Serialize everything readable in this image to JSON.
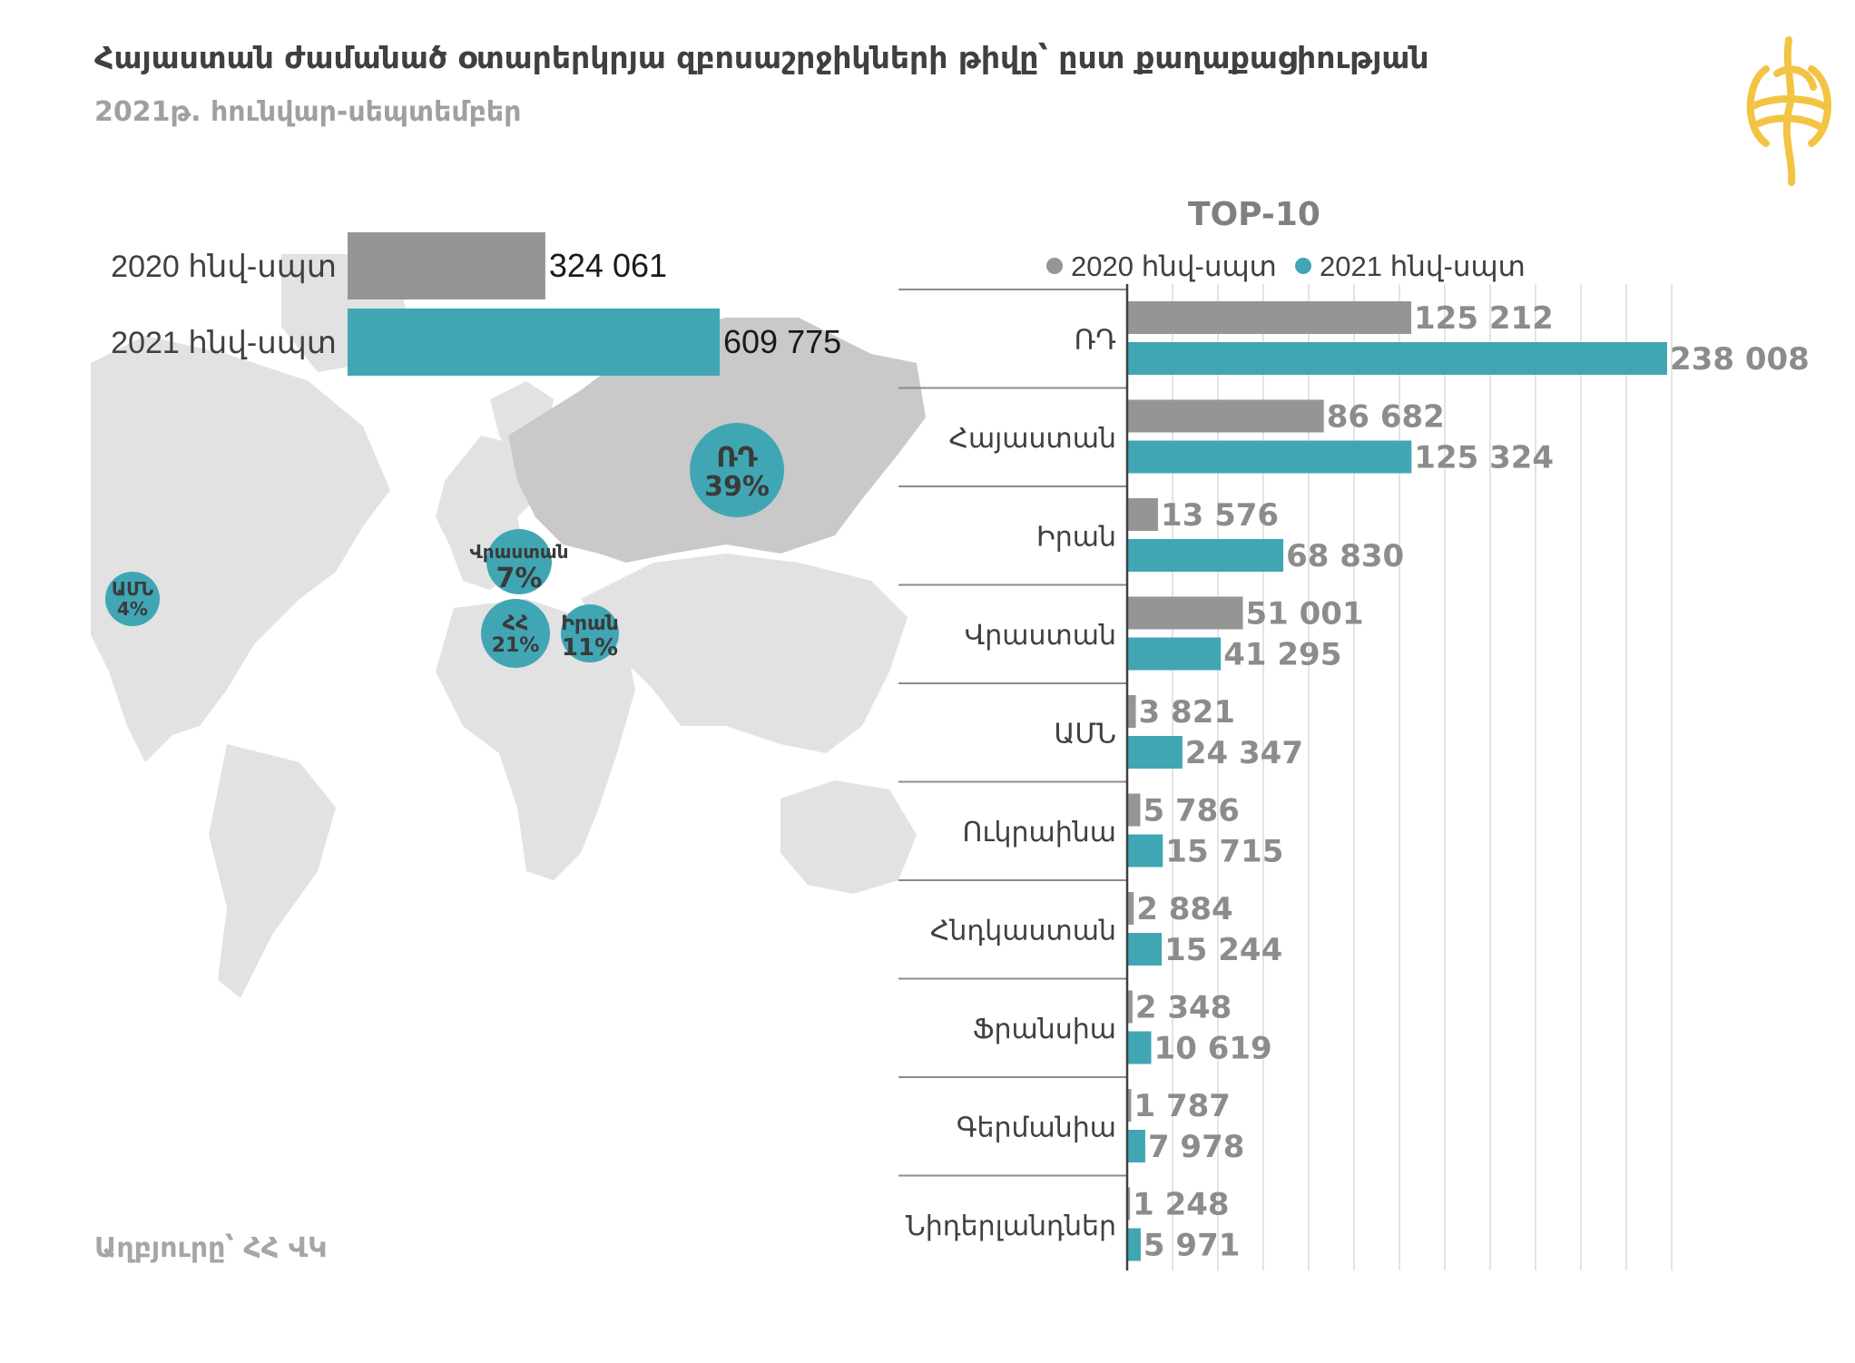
{
  "title": "Հայաստան ժամանած օտարերկրյա զբոսաշրջիկների թիվը՝ ըստ քաղաքացիության",
  "subtitle": "2021թ. հունվար-սեպտեմբեր",
  "source": "Աղբյուրը՝ ՀՀ ՎԿ",
  "colors": {
    "s2020": "#959595",
    "s2021": "#41a6b4",
    "logo": "#f3c443",
    "map": "#e2e2e2",
    "russia": "#c9c9c9"
  },
  "map_bubbles": [
    {
      "label": "ՌԴ",
      "pct": "39%"
    },
    {
      "label": "Վրաստան",
      "pct": "7%"
    },
    {
      "label": "ԱՄՆ",
      "pct": "4%"
    },
    {
      "label": "ՀՀ",
      "pct": "21%"
    },
    {
      "label": "Իրան",
      "pct": "11%"
    }
  ],
  "chart_data": [
    {
      "type": "bar",
      "orientation": "horizontal",
      "categories": [
        "2020 հնվ-սպտ",
        "2021 հնվ-սպտ"
      ],
      "values": [
        324061,
        609775
      ],
      "value_labels": [
        "324 061",
        "609 775"
      ]
    },
    {
      "type": "bar",
      "orientation": "horizontal",
      "title": "TOP-10",
      "legend_position": "top",
      "categories": [
        "ՌԴ",
        "Հայաստան",
        "Իրան",
        "Վրաստան",
        "ԱՄՆ",
        "Ուկրաինա",
        "Հնդկաստան",
        "Ֆրանսիա",
        "Գերմանիա",
        "Նիդերլանդներ"
      ],
      "series": [
        {
          "name": "2020 հնվ-սպտ",
          "values": [
            125212,
            86682,
            13576,
            51001,
            3821,
            5786,
            2884,
            2348,
            1787,
            1248
          ],
          "labels": [
            "125 212",
            "86 682",
            "13 576",
            "51 001",
            "3 821",
            "5 786",
            "2 884",
            "2 348",
            "1 787",
            "1 248"
          ]
        },
        {
          "name": "2021 հնվ-սպտ",
          "values": [
            238008,
            125324,
            68830,
            41295,
            24347,
            15715,
            15244,
            10619,
            7978,
            5971
          ],
          "labels": [
            "238 008",
            "125 324",
            "68 830",
            "41 295",
            "24 347",
            "15 715",
            "15 244",
            "10 619",
            "7 978",
            "5 971"
          ]
        }
      ],
      "xlim": [
        0,
        240000
      ],
      "grid": true
    }
  ]
}
